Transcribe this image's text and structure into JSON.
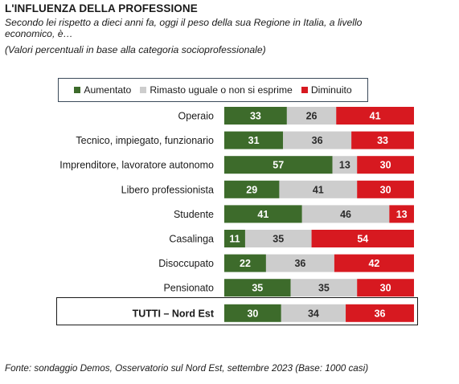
{
  "title": "L'INFLUENZA DELLA PROFESSIONE",
  "subtitle": "Secondo lei rispetto a dieci anni fa, oggi il peso della sua Regione in Italia, a livello economico, è…",
  "note": "(Valori percentuali in base alla categoria socioprofessionale)",
  "source": "Fonte: sondaggio Demos, Osservatorio sul Nord Est, settembre 2023 (Base: 1000 casi)",
  "colors": {
    "aumentato": "#3d6b2b",
    "rimasto": "#cdcdcd",
    "diminuito": "#d71920"
  },
  "chart_data": {
    "type": "bar",
    "orientation": "horizontal",
    "stacked": true,
    "categories": [
      "Operaio",
      "Tecnico, impiegato, funzionario",
      "Imprenditore, lavoratore autonomo",
      "Libero professionista",
      "Studente",
      "Casalinga",
      "Disoccupato",
      "Pensionato",
      "TUTTI – Nord Est"
    ],
    "series": [
      {
        "name": "Aumentato",
        "color": "#3d6b2b",
        "values": [
          33,
          31,
          57,
          29,
          41,
          11,
          22,
          35,
          30
        ]
      },
      {
        "name": "Rimasto uguale o non si esprime",
        "color": "#cdcdcd",
        "values": [
          26,
          36,
          13,
          41,
          46,
          35,
          36,
          35,
          34
        ]
      },
      {
        "name": "Diminuito",
        "color": "#d71920",
        "values": [
          41,
          33,
          30,
          30,
          13,
          54,
          42,
          30,
          36
        ]
      }
    ],
    "legend": "top",
    "grid": false
  }
}
